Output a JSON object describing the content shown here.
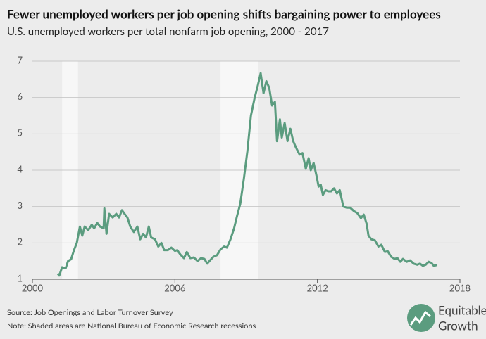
{
  "chart_data": {
    "type": "line",
    "title": "Fewer unemployed workers per job opening shifts bargaining power to employees",
    "subtitle": "U.S. unemployed workers per total nonfarm job opening, 2000 - 2017",
    "source": "Source: Job Openings and Labor Turnover Survey",
    "note": "Note: Shaded areas are National Bureau of Economic Research recessions",
    "xlim": [
      2000,
      2018
    ],
    "xticks": [
      2000,
      2006,
      2012,
      2018
    ],
    "ylim": [
      1,
      7
    ],
    "yticks": [
      1,
      2,
      3,
      4,
      5,
      6,
      7
    ],
    "grid": true,
    "recessions": [
      [
        2001.25,
        2001.92
      ],
      [
        2007.92,
        2009.5
      ]
    ],
    "series": [
      {
        "color": "#5b9c7f",
        "x": [
          2001.07,
          2001.13,
          2001.25,
          2001.4,
          2001.5,
          2001.63,
          2001.75,
          2001.87,
          2002.0,
          2002.1,
          2002.2,
          2002.35,
          2002.5,
          2002.6,
          2002.73,
          2002.85,
          2003.0,
          2003.03,
          2003.12,
          2003.23,
          2003.38,
          2003.53,
          2003.65,
          2003.77,
          2003.88,
          2004.0,
          2004.12,
          2004.27,
          2004.42,
          2004.54,
          2004.66,
          2004.78,
          2004.9,
          2005.0,
          2005.16,
          2005.3,
          2005.43,
          2005.55,
          2005.7,
          2005.85,
          2006.0,
          2006.1,
          2006.23,
          2006.38,
          2006.5,
          2006.65,
          2006.8,
          2006.95,
          2007.1,
          2007.24,
          2007.36,
          2007.48,
          2007.62,
          2007.77,
          2007.92,
          2008.07,
          2008.19,
          2008.34,
          2008.49,
          2008.6,
          2008.75,
          2008.9,
          2009.05,
          2009.2,
          2009.35,
          2009.5,
          2009.61,
          2009.73,
          2009.85,
          2009.97,
          2010.09,
          2010.21,
          2010.3,
          2010.42,
          2010.5,
          2010.62,
          2010.74,
          2010.86,
          2010.98,
          2011.1,
          2011.25,
          2011.37,
          2011.51,
          2011.63,
          2011.72,
          2011.84,
          2011.96,
          2012.05,
          2012.14,
          2012.23,
          2012.34,
          2012.46,
          2012.58,
          2012.7,
          2012.82,
          2012.94,
          2013.09,
          2013.23,
          2013.38,
          2013.53,
          2013.68,
          2013.83,
          2013.95,
          2014.07,
          2014.15,
          2014.27,
          2014.42,
          2014.57,
          2014.69,
          2014.84,
          2014.96,
          2015.1,
          2015.25,
          2015.37,
          2015.49,
          2015.6,
          2015.76,
          2015.9,
          2016.05,
          2016.2,
          2016.32,
          2016.44,
          2016.56,
          2016.68,
          2016.8,
          2016.9,
          2017.03
        ],
        "values": [
          1.15,
          1.1,
          1.33,
          1.3,
          1.5,
          1.55,
          1.8,
          2.0,
          2.45,
          2.2,
          2.45,
          2.35,
          2.5,
          2.4,
          2.55,
          2.45,
          2.4,
          2.95,
          2.25,
          2.8,
          2.7,
          2.8,
          2.7,
          2.9,
          2.8,
          2.7,
          2.45,
          2.3,
          2.45,
          2.1,
          2.25,
          2.15,
          2.45,
          2.15,
          2.1,
          1.9,
          2.0,
          1.8,
          1.8,
          1.87,
          1.78,
          1.8,
          1.68,
          1.58,
          1.75,
          1.58,
          1.6,
          1.5,
          1.58,
          1.56,
          1.43,
          1.52,
          1.62,
          1.66,
          1.82,
          1.9,
          1.87,
          2.1,
          2.4,
          2.7,
          3.07,
          3.75,
          4.52,
          5.5,
          5.97,
          6.36,
          6.67,
          6.12,
          6.45,
          6.27,
          5.78,
          5.88,
          4.8,
          5.4,
          4.9,
          5.3,
          4.8,
          5.14,
          4.8,
          4.62,
          4.43,
          4.47,
          4.04,
          4.33,
          4.0,
          4.2,
          3.85,
          3.55,
          3.6,
          3.32,
          3.45,
          3.42,
          3.42,
          3.5,
          3.36,
          3.45,
          3.0,
          2.97,
          2.97,
          2.88,
          2.82,
          2.68,
          2.78,
          2.53,
          2.2,
          2.1,
          2.07,
          1.9,
          1.95,
          1.75,
          1.77,
          1.62,
          1.56,
          1.58,
          1.48,
          1.56,
          1.48,
          1.52,
          1.43,
          1.4,
          1.43,
          1.37,
          1.4,
          1.48,
          1.45,
          1.37,
          1.39
        ]
      }
    ]
  },
  "logo": {
    "line1": "Equitable",
    "line2": "Growth"
  }
}
